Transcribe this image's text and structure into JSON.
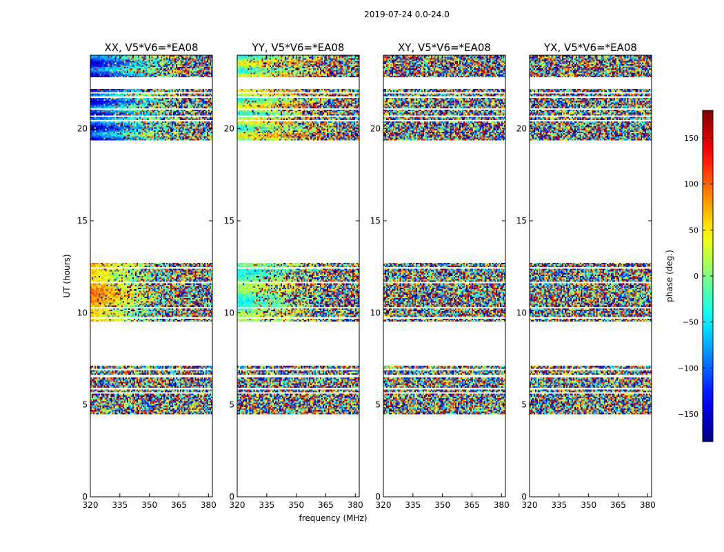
{
  "suptitle": "2019-07-24 0.0-24.0",
  "chart_data": {
    "type": "heatmap",
    "panels": [
      {
        "title": "XX, V5*V6=*EA08",
        "pattern": "coherent_xx"
      },
      {
        "title": "YY, V5*V6=*EA08",
        "pattern": "coherent_yy"
      },
      {
        "title": "XY, V5*V6=*EA08",
        "pattern": "noise"
      },
      {
        "title": "YX, V5*V6=*EA08",
        "pattern": "noise"
      }
    ],
    "xlabel": "frequency (MHz)",
    "ylabel": "UT (hours)",
    "xlim": [
      320,
      382
    ],
    "ylim": [
      0,
      24
    ],
    "xticks": [
      320,
      335,
      350,
      365,
      380
    ],
    "yticks": [
      0,
      5,
      10,
      15,
      20
    ],
    "time_blocks_hours": [
      [
        4.5,
        7.1
      ],
      [
        9.5,
        12.7
      ],
      [
        19.4,
        22.2
      ],
      [
        22.8,
        24.0
      ]
    ],
    "gaps_hours": [
      [
        5.58,
        5.65
      ],
      [
        5.83,
        5.9
      ],
      [
        6.5,
        6.62
      ],
      [
        6.9,
        6.95
      ],
      [
        10.25,
        10.3
      ],
      [
        11.6,
        11.66
      ],
      [
        12.4,
        12.45
      ],
      [
        9.7,
        9.73
      ],
      [
        20.05,
        20.1
      ],
      [
        20.65,
        20.75
      ],
      [
        21.05,
        21.12
      ],
      [
        20.4,
        20.44
      ],
      [
        21.7,
        21.75
      ],
      [
        21.95,
        22.0
      ]
    ],
    "colorbar": {
      "label": "phase (deg.)",
      "range": [
        -180,
        180
      ],
      "ticks": [
        -150,
        -100,
        -50,
        0,
        50,
        100,
        150
      ],
      "colormap": "jet"
    }
  }
}
